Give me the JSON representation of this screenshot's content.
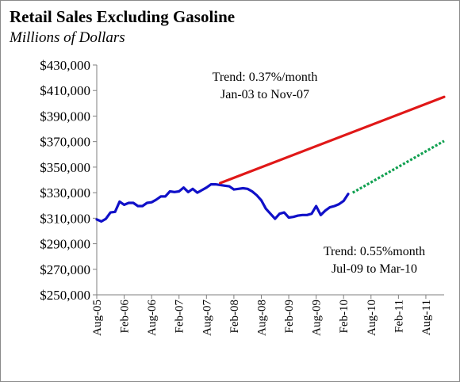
{
  "chart_data": {
    "type": "line",
    "title": "Retail Sales Excluding Gasoline",
    "subtitle": "Millions of Dollars",
    "ylim": [
      250000,
      430000
    ],
    "y_ticks": [
      "$430,000",
      "$410,000",
      "$390,000",
      "$370,000",
      "$350,000",
      "$330,000",
      "$310,000",
      "$290,000",
      "$270,000",
      "$250,000"
    ],
    "x_tick_labels": [
      "Aug-05",
      "Feb-06",
      "Aug-06",
      "Feb-07",
      "Aug-07",
      "Feb-08",
      "Aug-08",
      "Feb-09",
      "Aug-09",
      "Feb-10",
      "Aug-10",
      "Feb-11",
      "Aug-11"
    ],
    "grid": false,
    "series": [
      {
        "color": "#1010c8",
        "x": [
          "Aug-05",
          "Sep-05",
          "Oct-05",
          "Nov-05",
          "Dec-05",
          "Jan-06",
          "Feb-06",
          "Mar-06",
          "Apr-06",
          "May-06",
          "Jun-06",
          "Jul-06",
          "Aug-06",
          "Sep-06",
          "Oct-06",
          "Nov-06",
          "Dec-06",
          "Jan-07",
          "Feb-07",
          "Mar-07",
          "Apr-07",
          "May-07",
          "Jun-07",
          "Jul-07",
          "Aug-07",
          "Sep-07",
          "Oct-07",
          "Nov-07",
          "Dec-07",
          "Jan-08",
          "Feb-08",
          "Mar-08",
          "Apr-08",
          "May-08",
          "Jun-08",
          "Jul-08",
          "Aug-08",
          "Sep-08",
          "Oct-08",
          "Nov-08",
          "Dec-08",
          "Jan-09",
          "Feb-09",
          "Mar-09",
          "Apr-09",
          "May-09",
          "Jun-09",
          "Jul-09",
          "Aug-09",
          "Sep-09",
          "Oct-09",
          "Nov-09",
          "Dec-09",
          "Jan-10",
          "Feb-10",
          "Mar-10"
        ],
        "values": [
          309000,
          307500,
          309500,
          314500,
          315000,
          323000,
          320500,
          322000,
          322000,
          319500,
          319500,
          322000,
          322500,
          324500,
          327000,
          327000,
          331000,
          330500,
          331000,
          334000,
          330500,
          333000,
          330000,
          332000,
          334000,
          336500,
          336500,
          336000,
          335500,
          335000,
          332500,
          333000,
          333500,
          333000,
          331000,
          328000,
          324000,
          317500,
          313500,
          309500,
          313500,
          314500,
          310500,
          311000,
          312000,
          312500,
          312500,
          313500,
          319500,
          312500,
          316000,
          318500,
          319500,
          321000,
          323500,
          329000
        ]
      },
      {
        "color": "#e01818",
        "trend": "Trend:  0.37%/month",
        "range": "Jan-03 to Nov-07",
        "x_start": "Nov-07",
        "x_end": "Dec-11",
        "y_start": 337500,
        "y_end": 405000,
        "monthly_rate_percent": 0.37
      },
      {
        "color": "#10a050",
        "trend": "Trend:  0.55%month",
        "range": "Jul-09 to Mar-10",
        "x_start": "Apr-10",
        "x_end": "Dec-11",
        "y_start": 330000,
        "y_end": 370500,
        "monthly_rate_percent": 0.55
      }
    ]
  }
}
